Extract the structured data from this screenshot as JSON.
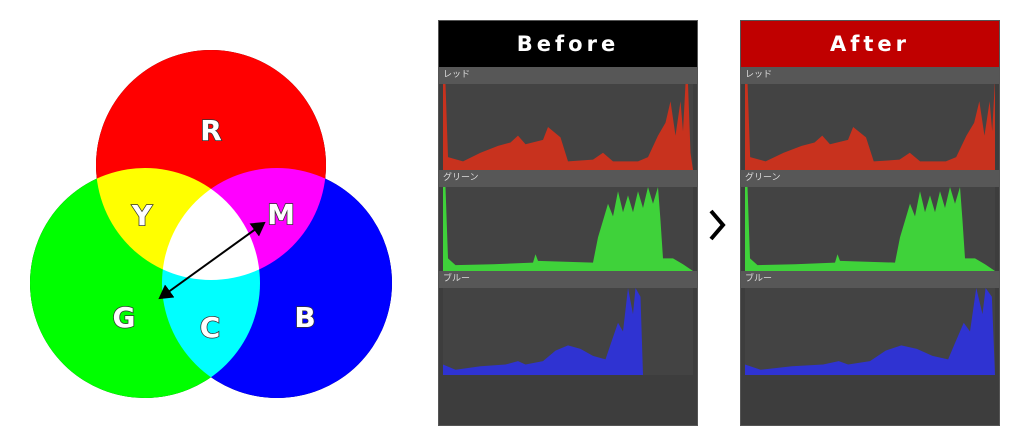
{
  "venn": {
    "labels": {
      "r": "R",
      "g": "G",
      "b": "B",
      "y": "Y",
      "m": "M",
      "c": "C"
    },
    "colors": {
      "r": "#ff0000",
      "g": "#00ff00",
      "b": "#0000ff"
    }
  },
  "panels": [
    {
      "title": "Before",
      "header_color": "#000000",
      "channels": [
        {
          "label": "レッド",
          "color": "#c8321e"
        },
        {
          "label": "グリーン",
          "color": "#3fd23a"
        },
        {
          "label": "ブルー",
          "color": "#2f33d2"
        }
      ]
    },
    {
      "title": "After",
      "header_color": "#c00000",
      "channels": [
        {
          "label": "レッド",
          "color": "#c8321e"
        },
        {
          "label": "グリーン",
          "color": "#3fd23a"
        },
        {
          "label": "ブルー",
          "color": "#2f33d2"
        }
      ]
    }
  ],
  "arrow_icon": "chevron-right-icon"
}
